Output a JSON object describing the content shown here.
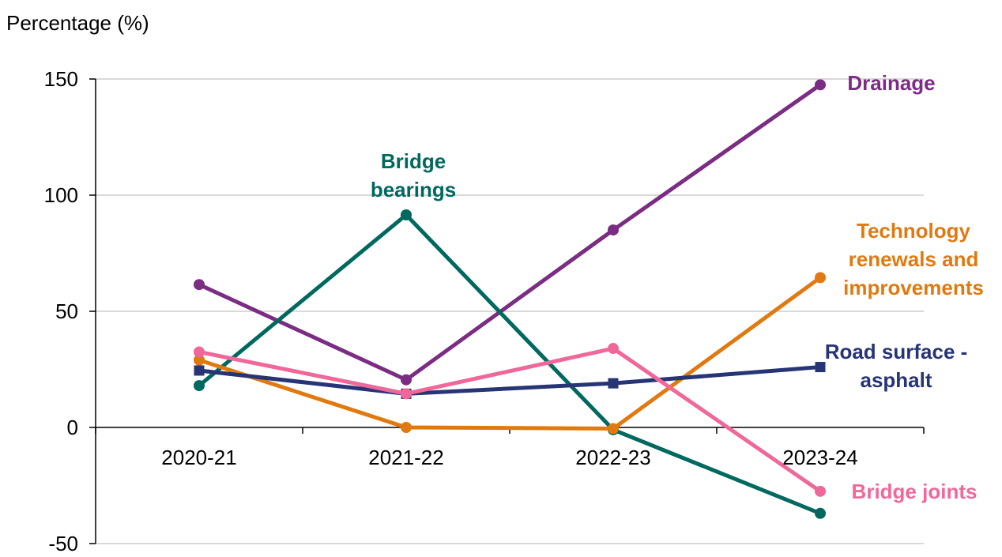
{
  "chart_data": {
    "type": "line",
    "ylabel": "Percentage (%)",
    "categories": [
      "2020-21",
      "2021-22",
      "2022-23",
      "2023-24"
    ],
    "ylim": [
      -50,
      150
    ],
    "yticks": [
      150,
      100,
      50,
      0,
      -50
    ],
    "grid": true,
    "legend": "direct labels at line ends",
    "series": [
      {
        "name": "Drainage",
        "label_lines": [
          "Drainage"
        ],
        "values": [
          61.5,
          20.5,
          85,
          147.5
        ],
        "color": "#7B2C83",
        "marker": "circle"
      },
      {
        "name": "Bridge bearings",
        "label_lines": [
          "Bridge",
          "bearings"
        ],
        "values": [
          18,
          91.5,
          -1,
          -37
        ],
        "color": "#00695F",
        "marker": "circle"
      },
      {
        "name": "Technology renewals and improvements",
        "label_lines": [
          "Technology",
          "renewals and",
          "improvements"
        ],
        "values": [
          29,
          0,
          -0.5,
          64.5
        ],
        "color": "#E07A10",
        "marker": "circle"
      },
      {
        "name": "Road surface - asphalt",
        "label_lines": [
          "Road surface -",
          "asphalt"
        ],
        "values": [
          24.5,
          14.5,
          19,
          26
        ],
        "color": "#273475",
        "marker": "square"
      },
      {
        "name": "Bridge joints",
        "label_lines": [
          "Bridge joints"
        ],
        "values": [
          32.5,
          14.5,
          34,
          -27.5
        ],
        "color": "#F0679A",
        "marker": "circle"
      }
    ]
  }
}
